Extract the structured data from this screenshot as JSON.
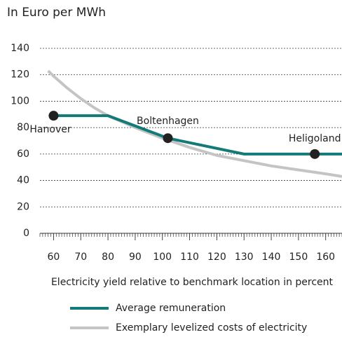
{
  "chart_data": {
    "type": "line",
    "title": "In Euro per MWh",
    "x_label": "Electricity yield relative to benchmark location in percent",
    "xlim": [
      55,
      166
    ],
    "xticks": [
      60,
      70,
      80,
      90,
      100,
      110,
      120,
      130,
      140,
      150,
      160
    ],
    "ylim": [
      0,
      140
    ],
    "yticks": [
      0,
      20,
      40,
      60,
      80,
      100,
      120,
      140
    ],
    "grid": true,
    "series": [
      {
        "name": "Exemplary levelized costs of electricity",
        "color": "#c4c4c4",
        "x": [
          58,
          60,
          65,
          70,
          75,
          80,
          90,
          100,
          110,
          120,
          130,
          140,
          150,
          160,
          166
        ],
        "values": [
          123,
          119,
          110,
          102,
          95,
          89,
          80,
          72,
          65,
          59,
          55,
          51,
          48,
          45,
          43
        ]
      },
      {
        "name": "Average remuneration",
        "color": "#127a78",
        "x": [
          60,
          80,
          102,
          130,
          166
        ],
        "values": [
          89,
          89,
          72,
          60,
          60
        ]
      }
    ],
    "points": [
      {
        "label": "Hanover",
        "x": 60,
        "y": 89
      },
      {
        "label": "Boltenhagen",
        "x": 102,
        "y": 72
      },
      {
        "label": "Heligoland",
        "x": 156,
        "y": 60
      }
    ]
  }
}
